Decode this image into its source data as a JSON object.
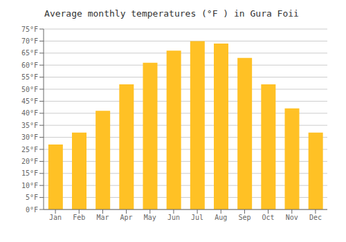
{
  "chart_data": {
    "type": "bar",
    "title": "Average monthly temperatures (°F ) in Gura Foii",
    "categories": [
      "Jan",
      "Feb",
      "Mar",
      "Apr",
      "May",
      "Jun",
      "Jul",
      "Aug",
      "Sep",
      "Oct",
      "Nov",
      "Dec"
    ],
    "values": [
      27,
      32,
      41,
      52,
      61,
      66,
      70,
      69,
      63,
      52,
      42,
      32
    ],
    "color": "#FFC125",
    "ylim": [
      0,
      75
    ],
    "yticks": [
      {
        "value": 0,
        "label": "0°F"
      },
      {
        "value": 5,
        "label": "5°F"
      },
      {
        "value": 10,
        "label": "10°F"
      },
      {
        "value": 15,
        "label": "15°F"
      },
      {
        "value": 20,
        "label": "20°F"
      },
      {
        "value": 25,
        "label": "25°F"
      },
      {
        "value": 30,
        "label": "30°F"
      },
      {
        "value": 35,
        "label": "35°F"
      },
      {
        "value": 40,
        "label": "40°F"
      },
      {
        "value": 45,
        "label": "45°F"
      },
      {
        "value": 50,
        "label": "50°F"
      },
      {
        "value": 55,
        "label": "55°F"
      },
      {
        "value": 60,
        "label": "60°F"
      },
      {
        "value": 65,
        "label": "65°F"
      },
      {
        "value": 70,
        "label": "70°F"
      },
      {
        "value": 75,
        "label": "75°F"
      }
    ],
    "grid": true
  }
}
